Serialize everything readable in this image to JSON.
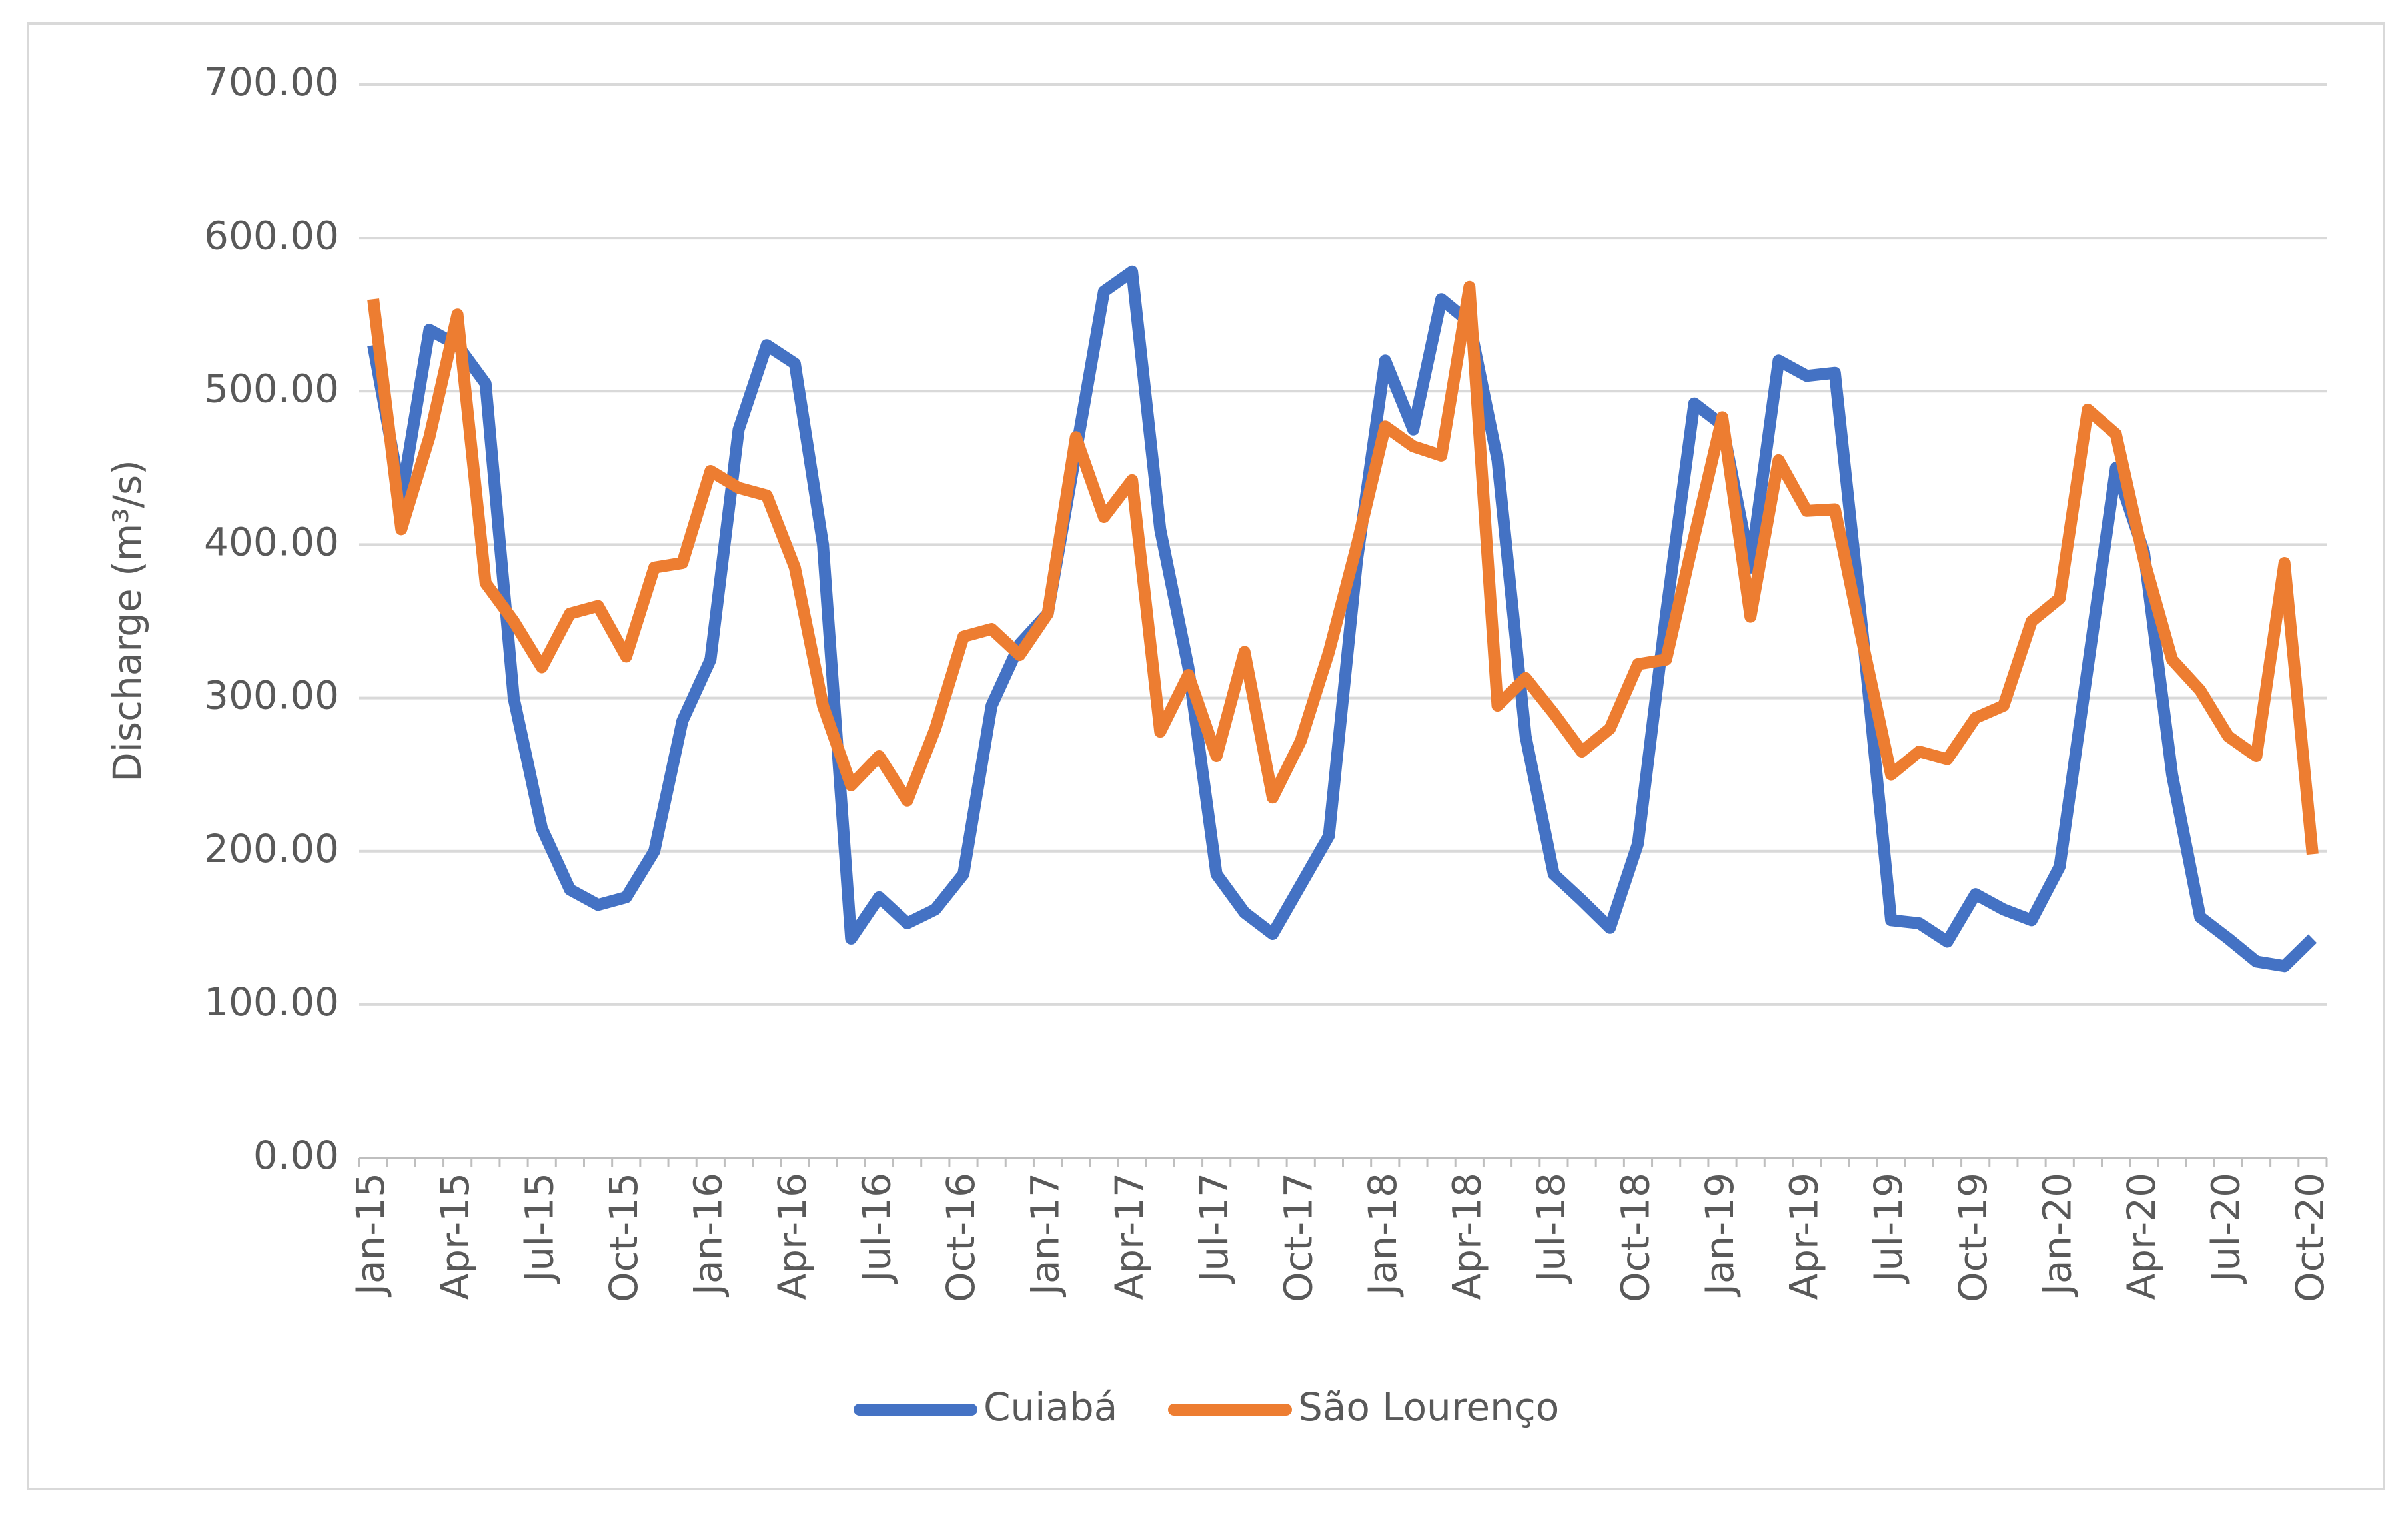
{
  "chart_data": {
    "type": "line",
    "y_label": "Discharge (m³/s)",
    "categories": [
      "Jan-15",
      null,
      null,
      "Apr-15",
      null,
      null,
      "Jul-15",
      null,
      null,
      "Oct-15",
      null,
      null,
      "Jan-16",
      null,
      null,
      "Apr-16",
      null,
      null,
      "Jul-16",
      null,
      null,
      "Oct-16",
      null,
      null,
      "Jan-17",
      null,
      null,
      "Apr-17",
      null,
      null,
      "Jul-17",
      null,
      null,
      "Oct-17",
      null,
      null,
      "Jan-18",
      null,
      null,
      "Apr-18",
      null,
      null,
      "Jul-18",
      null,
      null,
      "Oct-18",
      null,
      null,
      "Jan-19",
      null,
      null,
      "Apr-19",
      null,
      null,
      "Jul-19",
      null,
      null,
      "Oct-19",
      null,
      null,
      "Jan-20",
      null,
      null,
      "Apr-20",
      null,
      null,
      "Jul-20",
      null,
      null,
      "Oct-20"
    ],
    "series": [
      {
        "name": "Cuiabá",
        "color": "#4472c4",
        "values": [
          530,
          430,
          540,
          530,
          505,
          300,
          215,
          175,
          165,
          170,
          200,
          285,
          325,
          475,
          530,
          518,
          400,
          143,
          170,
          153,
          162,
          185,
          295,
          335,
          355,
          460,
          565,
          578,
          410,
          320,
          185,
          160,
          146,
          178,
          210,
          390,
          520,
          475,
          560,
          545,
          455,
          275,
          185,
          168,
          150,
          205,
          355,
          492,
          478,
          385,
          520,
          510,
          512,
          340,
          155,
          153,
          141,
          172,
          162,
          155,
          190,
          320,
          450,
          395,
          250,
          157,
          143,
          128,
          125,
          143
        ]
      },
      {
        "name": "São Lourenço",
        "color": "#ed7d31",
        "values": [
          560,
          410,
          470,
          550,
          375,
          350,
          320,
          355,
          360,
          327,
          385,
          388,
          448,
          437,
          432,
          385,
          295,
          243,
          262,
          233,
          280,
          340,
          345,
          328,
          355,
          470,
          418,
          442,
          278,
          315,
          262,
          330,
          235,
          272,
          330,
          400,
          477,
          464,
          458,
          568,
          295,
          313,
          290,
          265,
          280,
          322,
          325,
          405,
          483,
          353,
          455,
          422,
          423,
          335,
          250,
          265,
          260,
          287,
          295,
          350,
          365,
          488,
          472,
          390,
          325,
          305,
          275,
          262,
          388,
          198
        ]
      }
    ],
    "ylim": [
      0,
      700
    ],
    "yticks": [
      {
        "value": 0,
        "label": "0.00"
      },
      {
        "value": 100,
        "label": "100.00"
      },
      {
        "value": 200,
        "label": "200.00"
      },
      {
        "value": 300,
        "label": "300.00"
      },
      {
        "value": 400,
        "label": "400.00"
      },
      {
        "value": 500,
        "label": "500.00"
      },
      {
        "value": 600,
        "label": "600.00"
      },
      {
        "value": 700,
        "label": "700.00"
      }
    ],
    "grid": true,
    "legend": "bottom"
  }
}
